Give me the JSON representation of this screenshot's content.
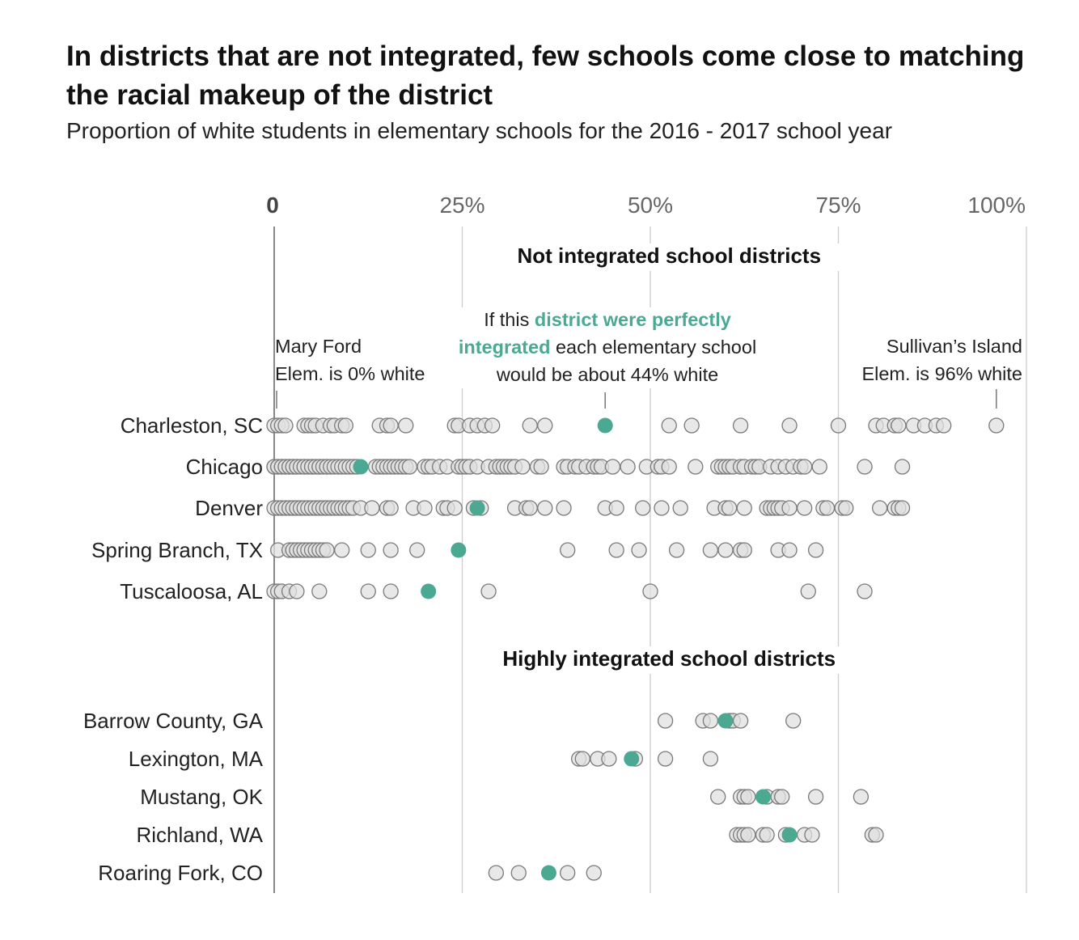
{
  "title": "In districts that are not integrated, few schools come close to matching the racial makeup of the district",
  "subtitle": "Proportion of white students in elementary schools for the 2016 - 2017 school year",
  "colors": {
    "school_fill": "#e0e0e0",
    "school_stroke": "#7a7a7a",
    "district_average": "#4aa893",
    "grid": "#cccccc",
    "zero_line": "#888888"
  },
  "annotations": {
    "mary_ford_line1": "Mary Ford",
    "mary_ford_line2": "Elem. is 0% white",
    "integrated_pre": "If this ",
    "integrated_hl1": "district were perfectly",
    "integrated_hl2": "integrated",
    "integrated_post": " each elementary school",
    "integrated_line3": "would be about 44% white",
    "sullivan_line1": "Sullivan’s Island",
    "sullivan_line2": "Elem. is 96% white"
  },
  "chart_data": {
    "type": "scatter",
    "x_axis": {
      "range": [
        0,
        100
      ],
      "ticks": [
        0,
        25,
        50,
        75,
        100
      ],
      "tick_labels": [
        "0",
        "25%",
        "50%",
        "75%",
        "100%"
      ],
      "grid": true
    },
    "groups": [
      {
        "label": "Not integrated school districts",
        "districts": [
          {
            "name": "Charleston, SC",
            "district_average": 44,
            "schools": [
              0,
              0.5,
              1,
              1.5,
              4,
              4.5,
              5,
              5.5,
              6.5,
              7.5,
              8,
              9,
              9.5,
              14,
              15,
              15.5,
              17.5,
              24,
              24.5,
              26,
              27,
              28,
              29,
              34,
              36,
              52.5,
              55.5,
              62,
              68.5,
              75,
              80,
              81,
              82.5,
              83,
              85,
              86.5,
              88,
              89,
              96
            ]
          },
          {
            "name": "Chicago",
            "district_average": 11.5,
            "schools": [
              0,
              0,
              0.5,
              0.5,
              1,
              1,
              1.5,
              1.5,
              2,
              2,
              2.5,
              2.5,
              3,
              3,
              3.5,
              4,
              4,
              4.5,
              5,
              5,
              5.5,
              6,
              6,
              6.5,
              7,
              7,
              7.5,
              8,
              8.5,
              9,
              9.5,
              10,
              10.5,
              11,
              13.5,
              14,
              14.5,
              15,
              15.5,
              16,
              16.5,
              17,
              17.5,
              18,
              20,
              20.5,
              21,
              22,
              23,
              24.5,
              25,
              25.5,
              26,
              27,
              28.5,
              29.5,
              30,
              30.5,
              31,
              31.5,
              32,
              33,
              35,
              35.5,
              38.5,
              39,
              40,
              40.5,
              41.5,
              42.5,
              43,
              43.5,
              45,
              47,
              49.5,
              51,
              51.5,
              52.5,
              56,
              59,
              59.5,
              60,
              60.5,
              61,
              62,
              62.5,
              63.5,
              64,
              64.5,
              66,
              67,
              68,
              69,
              70,
              70.5,
              72.5,
              78.5,
              83.5
            ]
          },
          {
            "name": "Denver",
            "district_average": 27,
            "schools": [
              0,
              0.5,
              1,
              1.5,
              2,
              2.5,
              3,
              3.5,
              4,
              4.5,
              5,
              5.5,
              6,
              6.5,
              7,
              7.5,
              8,
              8.5,
              9,
              9.5,
              10,
              10.5,
              11.5,
              13,
              15,
              15.5,
              18.5,
              20,
              22.5,
              23,
              24,
              26.5,
              27.5,
              32,
              33.5,
              34,
              36,
              38.5,
              44,
              45.5,
              49,
              51.5,
              54,
              58.5,
              60,
              60.5,
              62.5,
              65.5,
              66,
              66.5,
              67,
              67.5,
              68.5,
              70.5,
              73,
              73.5,
              75.5,
              76,
              80.5,
              82.5,
              83,
              83.5
            ]
          },
          {
            "name": "Spring Branch, TX",
            "district_average": 24.5,
            "schools": [
              0.5,
              2,
              2.5,
              3,
              3.5,
              4,
              4.5,
              5,
              5.5,
              6,
              6.5,
              7,
              9,
              12.5,
              15.5,
              19,
              39,
              45.5,
              48.5,
              53.5,
              58,
              60,
              62,
              62.5,
              67,
              68.5,
              72
            ]
          },
          {
            "name": "Tuscaloosa, AL",
            "district_average": 20.5,
            "schools": [
              0,
              0.5,
              1,
              2,
              3,
              6,
              12.5,
              15.5,
              28.5,
              50,
              71,
              78.5
            ]
          }
        ]
      },
      {
        "label": "Highly integrated school districts",
        "districts": [
          {
            "name": "Barrow County, GA",
            "district_average": 60,
            "schools": [
              52,
              57,
              58,
              60.5,
              61,
              62,
              69
            ]
          },
          {
            "name": "Lexington, MA",
            "district_average": 47.5,
            "schools": [
              40.5,
              41,
              43,
              44.5,
              48,
              52,
              58
            ]
          },
          {
            "name": "Mustang, OK",
            "district_average": 65,
            "schools": [
              59,
              62,
              62.5,
              63,
              65.5,
              67,
              67.5,
              72,
              78
            ]
          },
          {
            "name": "Richland, WA",
            "district_average": 68.5,
            "schools": [
              61.5,
              62,
              62.5,
              63,
              65,
              65.5,
              68,
              70.5,
              71.5,
              79.5,
              80
            ]
          },
          {
            "name": "Roaring Fork, CO",
            "district_average": 36.5,
            "schools": [
              29.5,
              32.5,
              39,
              42.5
            ]
          }
        ]
      }
    ]
  }
}
